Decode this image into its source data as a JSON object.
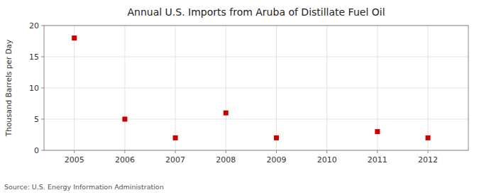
{
  "chart_data": {
    "type": "scatter",
    "title": "Annual U.S. Imports from Aruba of Distillate Fuel Oil",
    "ylabel": "Thousand Barrels per Day",
    "source": "Source: U.S. Energy Information Administration",
    "x": [
      2005,
      2006,
      2007,
      2008,
      2009,
      2011,
      2012
    ],
    "y": [
      18,
      5,
      2,
      6,
      2,
      3,
      2
    ],
    "xlim": [
      2004.4,
      2012.8
    ],
    "ylim": [
      0,
      20
    ],
    "xticks": [
      2005,
      2006,
      2007,
      2008,
      2009,
      2010,
      2011,
      2012
    ],
    "yticks": [
      0,
      5,
      10,
      15,
      20
    ],
    "color": "#cc0000",
    "marker": "square",
    "grid": true
  }
}
